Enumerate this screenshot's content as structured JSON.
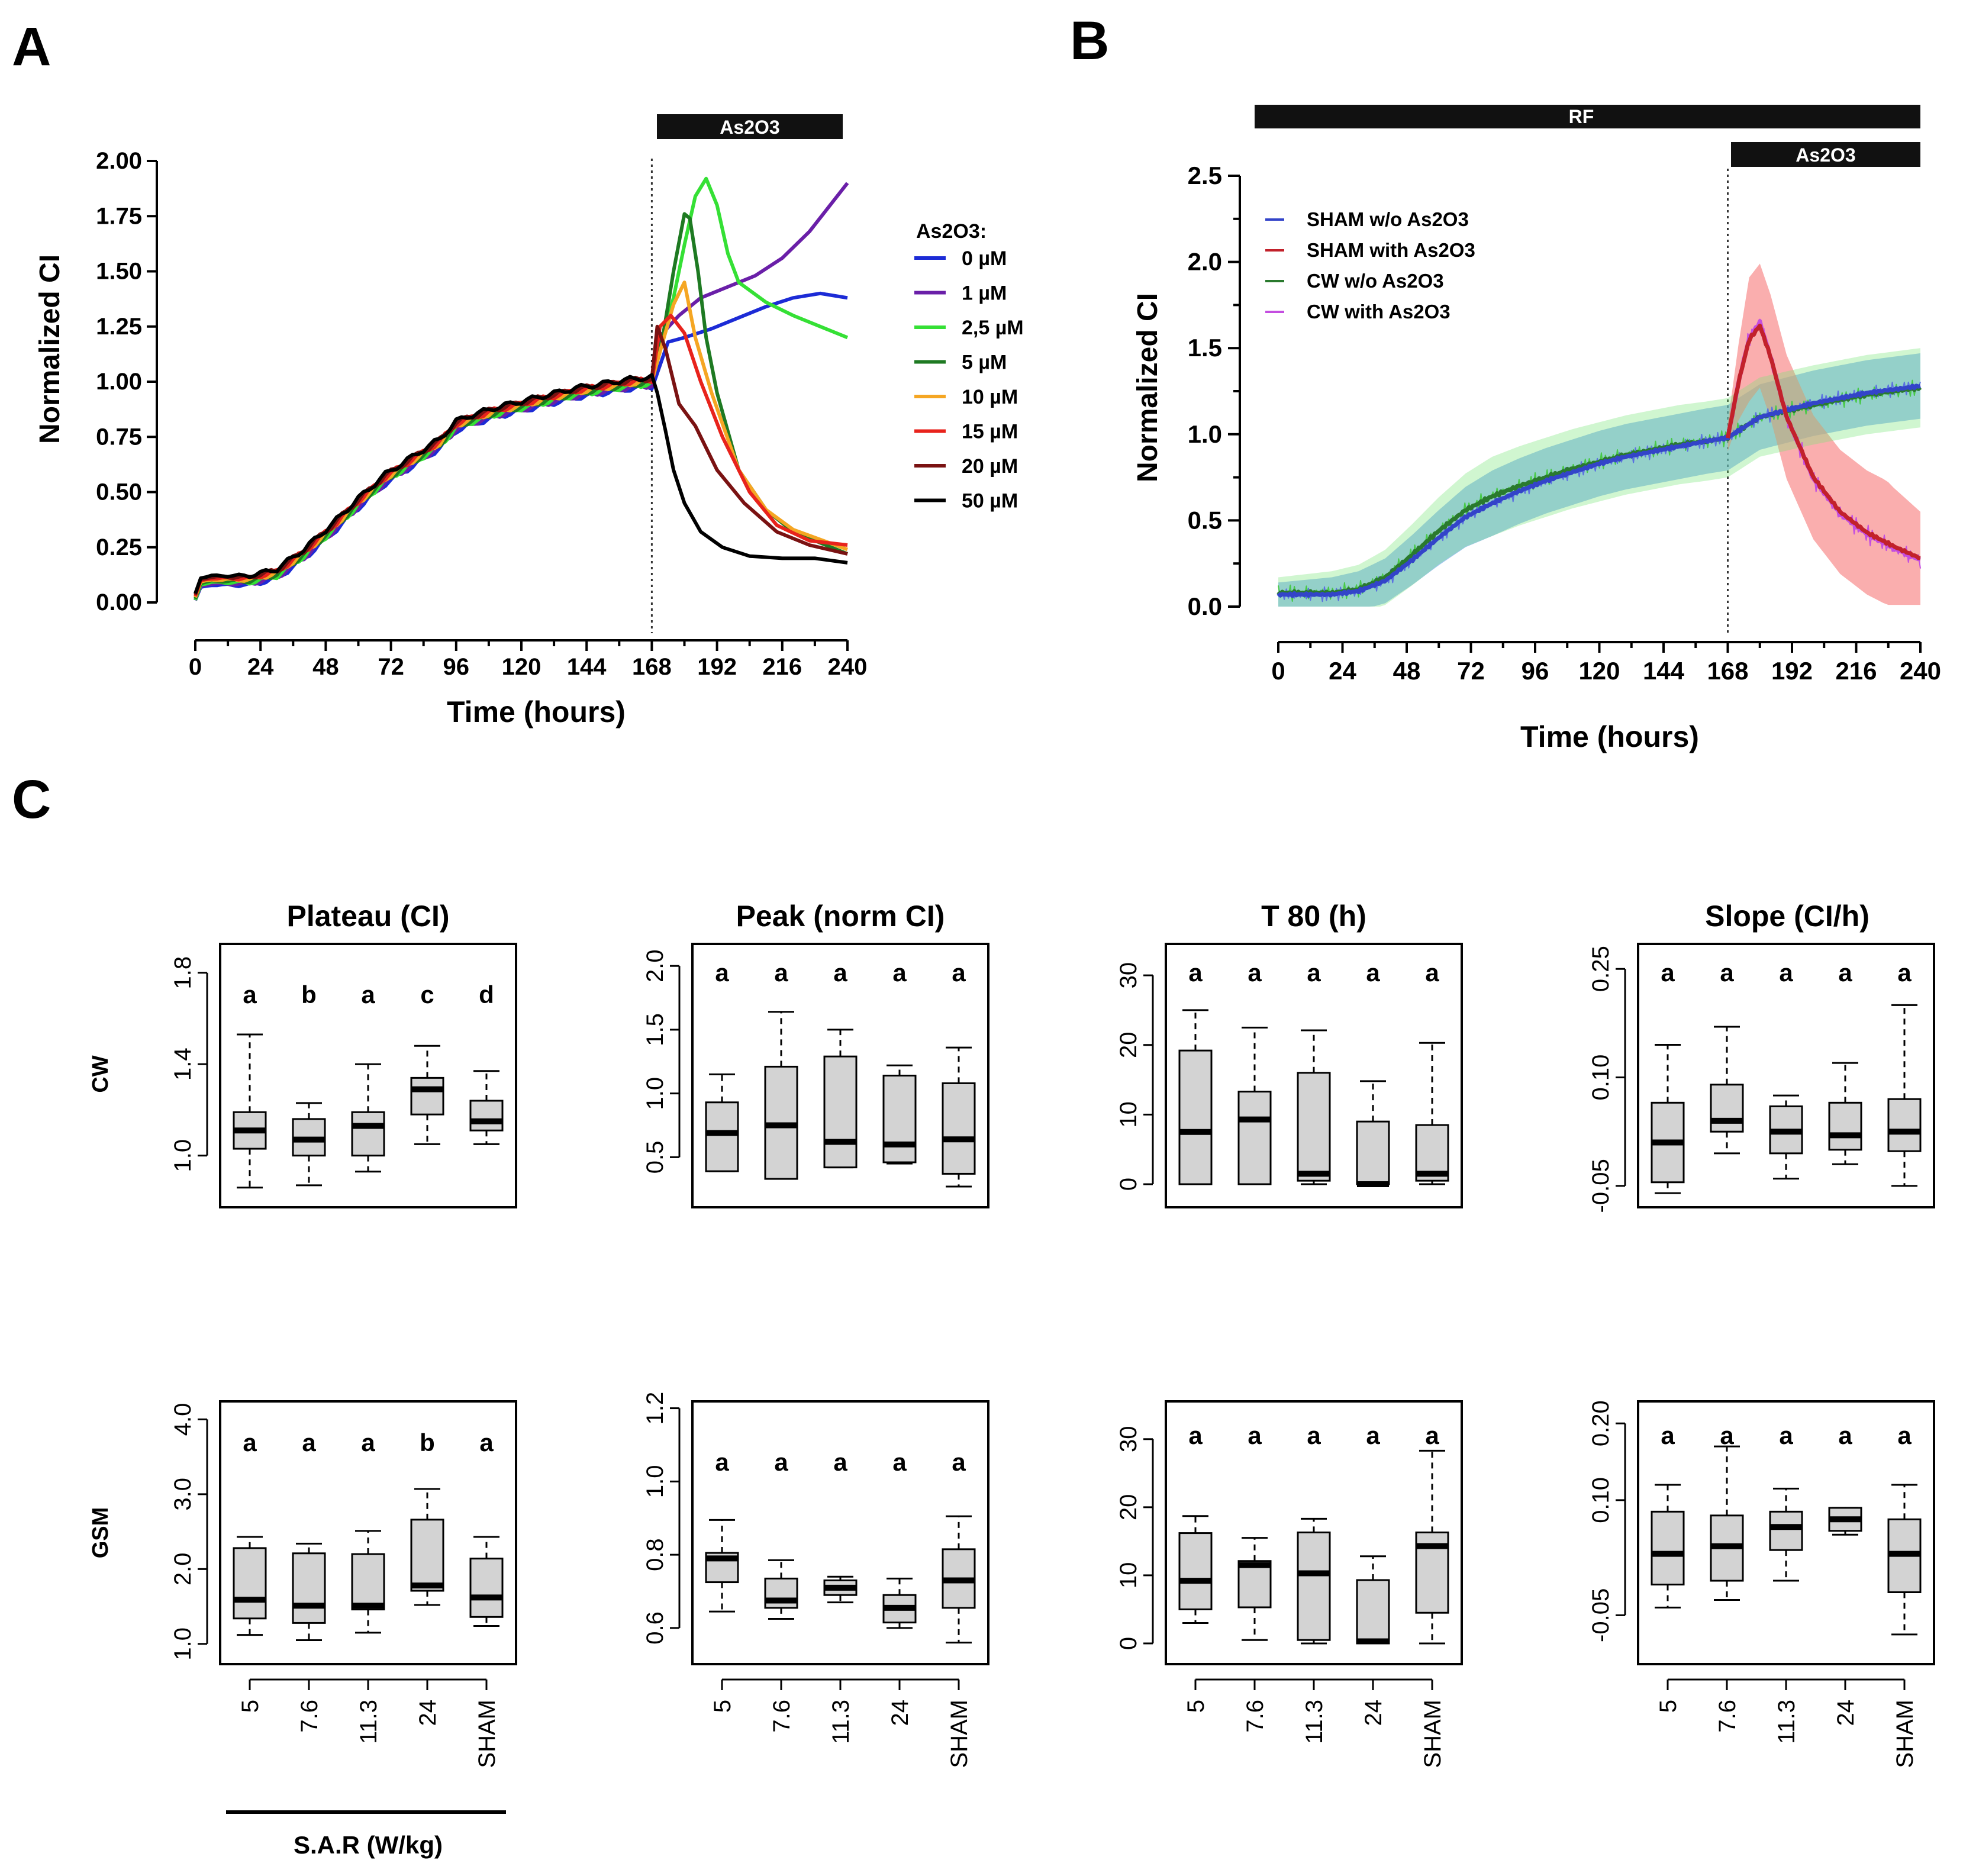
{
  "panels": {
    "A": {
      "letter": "A",
      "bar_label": "As2O3",
      "ylabel": "Normalized CI",
      "xlabel": "Time (hours)",
      "legend_title": "As2O3:",
      "yticks": [
        "0.00",
        "0.25",
        "0.50",
        "0.75",
        "1.00",
        "1.25",
        "1.50",
        "1.75",
        "2.00"
      ],
      "xticks": [
        "0",
        "24",
        "48",
        "72",
        "96",
        "120",
        "144",
        "168",
        "192",
        "216",
        "240"
      ],
      "legend": [
        {
          "label": "0 µM",
          "color": "#1c2bd6"
        },
        {
          "label": "1 µM",
          "color": "#6a1fa8"
        },
        {
          "label": "2,5 µM",
          "color": "#35e035"
        },
        {
          "label": "5 µM",
          "color": "#1e7a22"
        },
        {
          "label": "10 µM",
          "color": "#f5a623"
        },
        {
          "label": "15 µM",
          "color": "#e8231c"
        },
        {
          "label": "20 µM",
          "color": "#7a1212"
        },
        {
          "label": "50 µM",
          "color": "#000000"
        }
      ]
    },
    "B": {
      "letter": "B",
      "rf_label": "RF",
      "bar_label": "As2O3",
      "ylabel": "Normalized CI",
      "xlabel": "Time (hours)",
      "yticks": [
        "0.0",
        "0.5",
        "1.0",
        "1.5",
        "2.0",
        "2.5"
      ],
      "xticks": [
        "0",
        "24",
        "48",
        "72",
        "96",
        "120",
        "144",
        "168",
        "192",
        "216",
        "240"
      ],
      "legend": [
        {
          "label": "SHAM w/o As2O3",
          "color": "#3344c9"
        },
        {
          "label": "SHAM with As2O3",
          "color": "#c2212b"
        },
        {
          "label": "CW w/o As2O3",
          "color": "#2a7a2e"
        },
        {
          "label": "CW with As2O3",
          "color": "#c44ee0"
        }
      ]
    },
    "C": {
      "letter": "C",
      "row_labels": [
        "CW",
        "GSM"
      ],
      "col_titles": [
        "Plateau (CI)",
        "Peak (norm CI)",
        "T 80 (h)",
        "Slope (CI/h)"
      ],
      "categories": [
        "5",
        "7.6",
        "11.3",
        "24",
        "SHAM"
      ],
      "sar_label": "S.A.R (W/kg)"
    }
  },
  "chart_data": [
    {
      "type": "line",
      "panel": "A",
      "title": "",
      "xlabel": "Time (hours)",
      "ylabel": "Normalized CI",
      "xlim": [
        0,
        240
      ],
      "ylim": [
        0,
        2
      ],
      "treatment_start": 168,
      "series": [
        {
          "name": "0 µM",
          "x": [
            168,
            174,
            180,
            190,
            200,
            210,
            220,
            230,
            240
          ],
          "y": [
            1.0,
            1.18,
            1.2,
            1.24,
            1.29,
            1.34,
            1.38,
            1.4,
            1.38
          ]
        },
        {
          "name": "1 µM",
          "x": [
            168,
            172,
            178,
            186,
            196,
            206,
            216,
            226,
            240
          ],
          "y": [
            1.0,
            1.22,
            1.3,
            1.38,
            1.43,
            1.48,
            1.56,
            1.68,
            1.9
          ]
        },
        {
          "name": "2,5 µM",
          "x": [
            168,
            172,
            176,
            180,
            184,
            188,
            192,
            196,
            200,
            210,
            220,
            240
          ],
          "y": [
            1.0,
            1.2,
            1.38,
            1.62,
            1.84,
            1.92,
            1.8,
            1.58,
            1.45,
            1.36,
            1.3,
            1.2
          ]
        },
        {
          "name": "5 µM",
          "x": [
            168,
            172,
            176,
            180,
            182,
            185,
            188,
            192,
            200,
            210,
            220,
            240
          ],
          "y": [
            1.0,
            1.2,
            1.5,
            1.76,
            1.74,
            1.5,
            1.2,
            0.95,
            0.6,
            0.42,
            0.32,
            0.22
          ]
        },
        {
          "name": "10 µM",
          "x": [
            168,
            172,
            176,
            180,
            184,
            190,
            200,
            210,
            220,
            240
          ],
          "y": [
            1.0,
            1.18,
            1.35,
            1.45,
            1.2,
            0.95,
            0.6,
            0.42,
            0.33,
            0.24
          ]
        },
        {
          "name": "15 µM",
          "x": [
            168,
            171,
            175,
            180,
            186,
            194,
            204,
            214,
            226,
            240
          ],
          "y": [
            1.0,
            1.25,
            1.3,
            1.22,
            1.0,
            0.75,
            0.5,
            0.35,
            0.28,
            0.26
          ]
        },
        {
          "name": "20 µM",
          "x": [
            168,
            170,
            173,
            178,
            184,
            192,
            202,
            214,
            226,
            240
          ],
          "y": [
            1.0,
            1.25,
            1.15,
            0.9,
            0.8,
            0.6,
            0.45,
            0.32,
            0.26,
            0.22
          ]
        },
        {
          "name": "50 µM",
          "x": [
            168,
            170,
            173,
            176,
            180,
            186,
            194,
            204,
            216,
            228,
            240
          ],
          "y": [
            1.0,
            0.95,
            0.78,
            0.6,
            0.45,
            0.32,
            0.25,
            0.21,
            0.2,
            0.2,
            0.18
          ]
        }
      ],
      "shared_baseline": {
        "x": [
          0,
          2,
          6,
          12,
          20,
          30,
          40,
          50,
          60,
          70,
          80,
          90,
          96,
          100,
          110,
          120,
          130,
          140,
          150,
          160,
          168
        ],
        "y": [
          0.02,
          0.09,
          0.1,
          0.1,
          0.1,
          0.13,
          0.22,
          0.33,
          0.45,
          0.56,
          0.64,
          0.72,
          0.8,
          0.82,
          0.86,
          0.89,
          0.92,
          0.95,
          0.97,
          0.99,
          1.0
        ]
      }
    },
    {
      "type": "line",
      "panel": "B",
      "title": "",
      "xlabel": "Time (hours)",
      "ylabel": "Normalized CI",
      "xlim": [
        0,
        240
      ],
      "ylim": [
        0,
        2.5
      ],
      "rf_exposure": [
        0,
        240
      ],
      "treatment_start": 168,
      "series": [
        {
          "name": "SHAM w/o As2O3",
          "x": [
            0,
            10,
            20,
            30,
            40,
            50,
            60,
            70,
            80,
            90,
            100,
            110,
            120,
            130,
            140,
            150,
            160,
            168,
            180,
            200,
            220,
            240
          ],
          "y": [
            0.07,
            0.07,
            0.07,
            0.09,
            0.15,
            0.27,
            0.4,
            0.52,
            0.6,
            0.67,
            0.73,
            0.78,
            0.83,
            0.87,
            0.9,
            0.93,
            0.96,
            0.98,
            1.1,
            1.18,
            1.24,
            1.28
          ]
        },
        {
          "name": "SHAM with As2O3",
          "x": [
            168,
            172,
            176,
            180,
            184,
            190,
            200,
            210,
            220,
            230,
            240
          ],
          "y": [
            0.98,
            1.3,
            1.55,
            1.63,
            1.45,
            1.1,
            0.75,
            0.55,
            0.43,
            0.35,
            0.28
          ]
        },
        {
          "name": "CW w/o As2O3",
          "x": [
            0,
            10,
            20,
            30,
            40,
            50,
            60,
            70,
            80,
            90,
            100,
            110,
            120,
            130,
            140,
            150,
            160,
            168,
            180,
            200,
            220,
            240
          ],
          "y": [
            0.08,
            0.08,
            0.08,
            0.1,
            0.17,
            0.3,
            0.44,
            0.56,
            0.64,
            0.7,
            0.75,
            0.8,
            0.84,
            0.88,
            0.91,
            0.94,
            0.96,
            0.98,
            1.1,
            1.17,
            1.23,
            1.27
          ]
        },
        {
          "name": "CW with As2O3",
          "x": [
            168,
            172,
            176,
            180,
            184,
            190,
            200,
            210,
            220,
            230,
            240
          ],
          "y": [
            0.98,
            1.3,
            1.56,
            1.65,
            1.45,
            1.1,
            0.74,
            0.54,
            0.42,
            0.34,
            0.27
          ]
        }
      ]
    },
    {
      "type": "boxplot",
      "panel": "C",
      "title": "Plateau (CI)",
      "row": "CW",
      "categories": [
        "5",
        "7.6",
        "11.3",
        "24",
        "SHAM"
      ],
      "ylim": [
        0.82,
        1.88
      ],
      "yticks": [
        "1.0",
        "1.4",
        "1.8"
      ],
      "letters": [
        "a",
        "b",
        "a",
        "c",
        "d"
      ],
      "boxes": [
        {
          "min": 0.86,
          "q1": 1.03,
          "median": 1.11,
          "q3": 1.19,
          "max": 1.53
        },
        {
          "min": 0.87,
          "q1": 1.0,
          "median": 1.07,
          "q3": 1.16,
          "max": 1.23
        },
        {
          "min": 0.93,
          "q1": 1.0,
          "median": 1.13,
          "q3": 1.19,
          "max": 1.4
        },
        {
          "min": 1.05,
          "q1": 1.18,
          "median": 1.29,
          "q3": 1.34,
          "max": 1.48
        },
        {
          "min": 1.05,
          "q1": 1.11,
          "median": 1.15,
          "q3": 1.24,
          "max": 1.37
        }
      ]
    },
    {
      "type": "boxplot",
      "panel": "C",
      "title": "Peak (norm CI)",
      "row": "CW",
      "categories": [
        "5",
        "7.6",
        "11.3",
        "24",
        "SHAM"
      ],
      "ylim": [
        0.19,
        2.09
      ],
      "yticks": [
        "0.5",
        "1.0",
        "1.5",
        "2.0"
      ],
      "letters": [
        "a",
        "a",
        "a",
        "a",
        "a"
      ],
      "boxes": [
        {
          "min": 0.39,
          "q1": 0.39,
          "median": 0.69,
          "q3": 0.93,
          "max": 1.15
        },
        {
          "min": 0.33,
          "q1": 0.33,
          "median": 0.75,
          "q3": 1.21,
          "max": 1.64
        },
        {
          "min": 0.42,
          "q1": 0.42,
          "median": 0.62,
          "q3": 1.29,
          "max": 1.5
        },
        {
          "min": 0.45,
          "q1": 0.46,
          "median": 0.6,
          "q3": 1.14,
          "max": 1.22
        },
        {
          "min": 0.27,
          "q1": 0.37,
          "median": 0.64,
          "q3": 1.08,
          "max": 1.36
        }
      ]
    },
    {
      "type": "boxplot",
      "panel": "C",
      "title": "T 80 (h)",
      "row": "CW",
      "categories": [
        "5",
        "7.6",
        "11.3",
        "24",
        "SHAM"
      ],
      "ylim": [
        -1.8,
        33
      ],
      "yticks": [
        "0",
        "10",
        "20",
        "30"
      ],
      "letters": [
        "a",
        "a",
        "a",
        "a",
        "a"
      ],
      "boxes": [
        {
          "min": 0,
          "q1": 0,
          "median": 7.5,
          "q3": 19.2,
          "max": 25
        },
        {
          "min": 0,
          "q1": 0,
          "median": 9.3,
          "q3": 13.3,
          "max": 22.5
        },
        {
          "min": 0,
          "q1": 0.5,
          "median": 1.5,
          "q3": 16,
          "max": 22.1
        },
        {
          "min": 0,
          "q1": 0,
          "median": 0,
          "q3": 9,
          "max": 14.8
        },
        {
          "min": 0,
          "q1": 0.5,
          "median": 1.5,
          "q3": 8.5,
          "max": 20.3
        }
      ]
    },
    {
      "type": "boxplot",
      "panel": "C",
      "title": "Slope (CI/h)",
      "row": "CW",
      "categories": [
        "5",
        "7.6",
        "11.3",
        "24",
        "SHAM"
      ],
      "ylim": [
        -0.065,
        0.27
      ],
      "yticks": [
        "-0.05",
        "0.10",
        "0.25"
      ],
      "letters": [
        "a",
        "a",
        "a",
        "a",
        "a"
      ],
      "boxes": [
        {
          "min": -0.06,
          "q1": -0.045,
          "median": 0.01,
          "q3": 0.065,
          "max": 0.145
        },
        {
          "min": -0.005,
          "q1": 0.025,
          "median": 0.04,
          "q3": 0.09,
          "max": 0.17
        },
        {
          "min": -0.04,
          "q1": -0.005,
          "median": 0.025,
          "q3": 0.06,
          "max": 0.075
        },
        {
          "min": -0.02,
          "q1": 0.0,
          "median": 0.02,
          "q3": 0.065,
          "max": 0.12
        },
        {
          "min": -0.05,
          "q1": -0.002,
          "median": 0.025,
          "q3": 0.07,
          "max": 0.2
        }
      ]
    },
    {
      "type": "boxplot",
      "panel": "C",
      "title": "Plateau (CI)",
      "row": "GSM",
      "categories": [
        "5",
        "7.6",
        "11.3",
        "24",
        "SHAM"
      ],
      "ylim": [
        0.87,
        4.1
      ],
      "yticks": [
        "1.0",
        "2.0",
        "3.0",
        "4.0"
      ],
      "letters": [
        "a",
        "a",
        "a",
        "b",
        "a"
      ],
      "boxes": [
        {
          "min": 1.12,
          "q1": 1.34,
          "median": 1.59,
          "q3": 2.28,
          "max": 2.43
        },
        {
          "min": 1.05,
          "q1": 1.28,
          "median": 1.51,
          "q3": 2.21,
          "max": 2.34
        },
        {
          "min": 1.15,
          "q1": 1.46,
          "median": 1.51,
          "q3": 2.2,
          "max": 2.51
        },
        {
          "min": 1.52,
          "q1": 1.71,
          "median": 1.78,
          "q3": 2.66,
          "max": 3.07
        },
        {
          "min": 1.24,
          "q1": 1.36,
          "median": 1.62,
          "q3": 2.14,
          "max": 2.43
        }
      ]
    },
    {
      "type": "boxplot",
      "panel": "C",
      "title": "Peak (norm CI)",
      "row": "GSM",
      "categories": [
        "5",
        "7.6",
        "11.3",
        "24",
        "SHAM"
      ],
      "ylim": [
        0.53,
        1.19
      ],
      "yticks": [
        "0.6",
        "0.8",
        "1.0",
        "1.2"
      ],
      "letters": [
        "a",
        "a",
        "a",
        "a",
        "a"
      ],
      "boxes": [
        {
          "min": 0.645,
          "q1": 0.725,
          "median": 0.79,
          "q3": 0.805,
          "max": 0.895
        },
        {
          "min": 0.625,
          "q1": 0.655,
          "median": 0.675,
          "q3": 0.735,
          "max": 0.785
        },
        {
          "min": 0.67,
          "q1": 0.69,
          "median": 0.71,
          "q3": 0.73,
          "max": 0.74
        },
        {
          "min": 0.6,
          "q1": 0.615,
          "median": 0.655,
          "q3": 0.69,
          "max": 0.735
        },
        {
          "min": 0.56,
          "q1": 0.655,
          "median": 0.73,
          "q3": 0.815,
          "max": 0.905
        }
      ]
    },
    {
      "type": "boxplot",
      "panel": "C",
      "title": "T 80 (h)",
      "row": "GSM",
      "categories": [
        "5",
        "7.6",
        "11.3",
        "24",
        "SHAM"
      ],
      "ylim": [
        -1.5,
        34
      ],
      "yticks": [
        "0",
        "10",
        "20",
        "30"
      ],
      "letters": [
        "a",
        "a",
        "a",
        "a",
        "a"
      ],
      "boxes": [
        {
          "min": 3,
          "q1": 5,
          "median": 9.2,
          "q3": 16.2,
          "max": 18.7
        },
        {
          "min": 0.5,
          "q1": 5.3,
          "median": 11.5,
          "q3": 12.1,
          "max": 15.5
        },
        {
          "min": 0,
          "q1": 0.5,
          "median": 10.3,
          "q3": 16.3,
          "max": 18.3
        },
        {
          "min": 0,
          "q1": 0,
          "median": 0.3,
          "q3": 9.3,
          "max": 12.8
        },
        {
          "min": 0,
          "q1": 4.5,
          "median": 14.3,
          "q3": 16.3,
          "max": 28.3
        }
      ]
    },
    {
      "type": "boxplot",
      "panel": "C",
      "title": "Slope (CI/h)",
      "row": "GSM",
      "categories": [
        "5",
        "7.6",
        "11.3",
        "24",
        "SHAM"
      ],
      "ylim": [
        -0.1,
        0.215
      ],
      "yticks": [
        "-0.05",
        "0.10",
        "0.20"
      ],
      "letters": [
        "a",
        "a",
        "a",
        "a",
        "a"
      ],
      "boxes": [
        {
          "min": -0.04,
          "q1": -0.01,
          "median": 0.03,
          "q3": 0.085,
          "max": 0.12
        },
        {
          "min": -0.03,
          "q1": -0.005,
          "median": 0.04,
          "q3": 0.08,
          "max": 0.17
        },
        {
          "min": -0.005,
          "q1": 0.035,
          "median": 0.065,
          "q3": 0.085,
          "max": 0.115
        },
        {
          "min": 0.055,
          "q1": 0.06,
          "median": 0.075,
          "q3": 0.09,
          "max": 0.09
        },
        {
          "min": -0.075,
          "q1": -0.02,
          "median": 0.03,
          "q3": 0.075,
          "max": 0.12
        }
      ]
    }
  ]
}
